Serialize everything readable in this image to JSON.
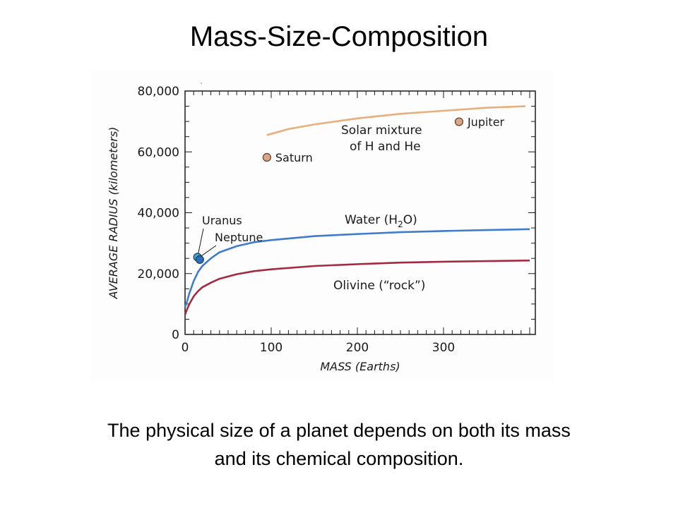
{
  "page": {
    "title": "Mass-Size-Composition",
    "caption_line1": "The physical size of a planet depends on both its mass",
    "caption_line2": "and its chemical composition."
  },
  "chart_data": {
    "type": "line",
    "title": "",
    "xlabel": "MASS (Earths)",
    "ylabel": "AVERAGE RADIUS (kilometers)",
    "xlim": [
      0,
      400
    ],
    "ylim": [
      0,
      80000
    ],
    "x_ticks": [
      0,
      100,
      200,
      300
    ],
    "x_tick_labels": [
      "0",
      "100",
      "200",
      "300"
    ],
    "y_ticks": [
      0,
      20000,
      40000,
      60000,
      80000
    ],
    "y_tick_labels": [
      "0",
      "20,000",
      "40,000",
      "60,000",
      "80,000"
    ],
    "grid": false,
    "series": [
      {
        "name": "Solar mixture",
        "label_lines": [
          "Solar mixture",
          "of H and He"
        ],
        "color": "#e8ae7c",
        "points": [
          [
            95,
            65500
          ],
          [
            120,
            67500
          ],
          [
            150,
            69000
          ],
          [
            200,
            71000
          ],
          [
            250,
            72500
          ],
          [
            300,
            73500
          ],
          [
            350,
            74500
          ],
          [
            395,
            75000
          ]
        ]
      },
      {
        "name": "Water (H2O)",
        "label_parts": [
          "Water (H",
          "2",
          "O)"
        ],
        "color": "#3f7ccc",
        "points": [
          [
            0,
            9000
          ],
          [
            2,
            10500
          ],
          [
            5,
            13500
          ],
          [
            10,
            17500
          ],
          [
            15,
            20500
          ],
          [
            20,
            22500
          ],
          [
            30,
            25000
          ],
          [
            40,
            27000
          ],
          [
            60,
            29000
          ],
          [
            80,
            30300
          ],
          [
            100,
            31000
          ],
          [
            150,
            32300
          ],
          [
            200,
            33000
          ],
          [
            250,
            33600
          ],
          [
            300,
            34000
          ],
          [
            350,
            34300
          ],
          [
            400,
            34600
          ]
        ]
      },
      {
        "name": "Olivine (“rock”)",
        "color": "#a52a40",
        "points": [
          [
            0,
            6500
          ],
          [
            2,
            8000
          ],
          [
            5,
            10000
          ],
          [
            10,
            12500
          ],
          [
            15,
            14200
          ],
          [
            20,
            15500
          ],
          [
            30,
            17000
          ],
          [
            40,
            18300
          ],
          [
            60,
            19800
          ],
          [
            80,
            20800
          ],
          [
            100,
            21400
          ],
          [
            150,
            22500
          ],
          [
            200,
            23100
          ],
          [
            250,
            23600
          ],
          [
            300,
            23900
          ],
          [
            350,
            24100
          ],
          [
            400,
            24300
          ]
        ]
      }
    ],
    "planets": [
      {
        "name": "Jupiter",
        "mass": 318,
        "radius": 69900,
        "color": "#d9a882"
      },
      {
        "name": "Saturn",
        "mass": 95,
        "radius": 58200,
        "color": "#d9a882"
      },
      {
        "name": "Uranus",
        "mass": 14.5,
        "radius": 25400,
        "color": "#3fa8cc"
      },
      {
        "name": "Neptune",
        "mass": 17.1,
        "radius": 24600,
        "color": "#2e6db8"
      }
    ]
  }
}
